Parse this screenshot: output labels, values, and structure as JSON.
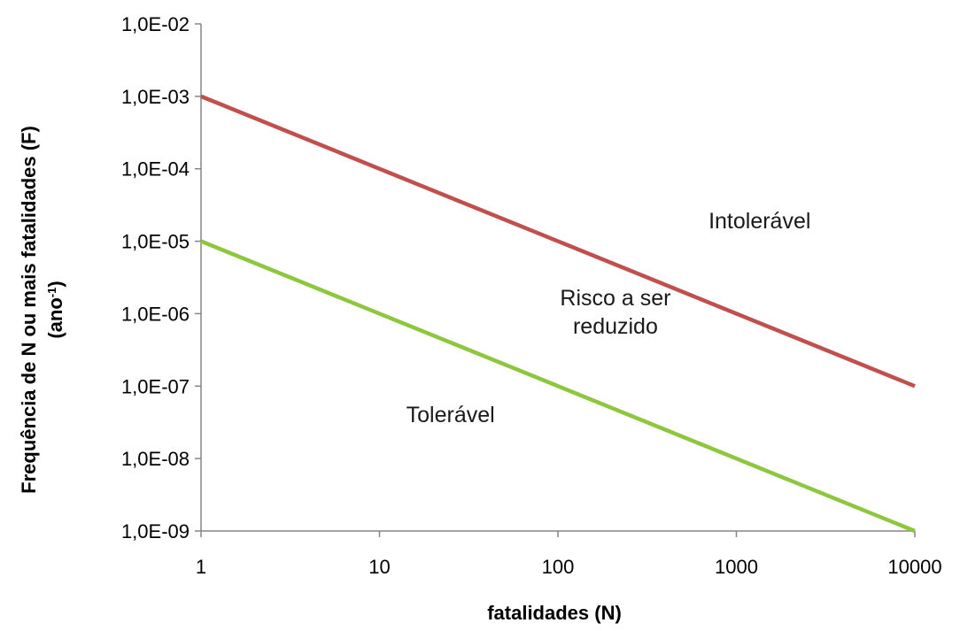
{
  "chart_data": {
    "type": "line",
    "xlabel": "fatalidades (N)",
    "ylabel_line1": "Frequência de N ou mais fatalidades (F)",
    "ylabel_line2_prefix": "(ano",
    "ylabel_line2_sup": "-1",
    "ylabel_line2_suffix": ")",
    "x_scale": "log",
    "y_scale": "log",
    "xlim": [
      1,
      10000
    ],
    "ylim": [
      1e-09,
      0.01
    ],
    "x_ticks": [
      1,
      10,
      100,
      1000,
      10000
    ],
    "x_tick_labels": [
      "1",
      "10",
      "100",
      "1000",
      "10000"
    ],
    "y_ticks": [
      0.01,
      0.001,
      0.0001,
      1e-05,
      1e-06,
      1e-07,
      1e-08,
      1e-09
    ],
    "y_tick_labels": [
      "1,0E-02",
      "1,0E-03",
      "1,0E-04",
      "1,0E-05",
      "1,0E-06",
      "1,0E-07",
      "1,0E-08",
      "1,0E-09"
    ],
    "grid": false,
    "series": [
      {
        "color": "#c0504d",
        "x": [
          1,
          10000
        ],
        "y": [
          0.001,
          1e-07
        ]
      },
      {
        "color": "#8dc63f",
        "x": [
          1,
          10000
        ],
        "y": [
          1e-05,
          1e-09
        ]
      }
    ],
    "annotations": [
      {
        "text": "Intolerável",
        "x": 1350,
        "y": 1.5e-05
      },
      {
        "text": "Risco a ser",
        "x": 210,
        "y": 1.3e-06
      },
      {
        "text": "reduzido",
        "x": 210,
        "y": 5.3e-07
      },
      {
        "text": "Tolerável",
        "x": 25,
        "y": 3.2e-08
      }
    ]
  },
  "colors": {
    "axis": "#868686"
  }
}
